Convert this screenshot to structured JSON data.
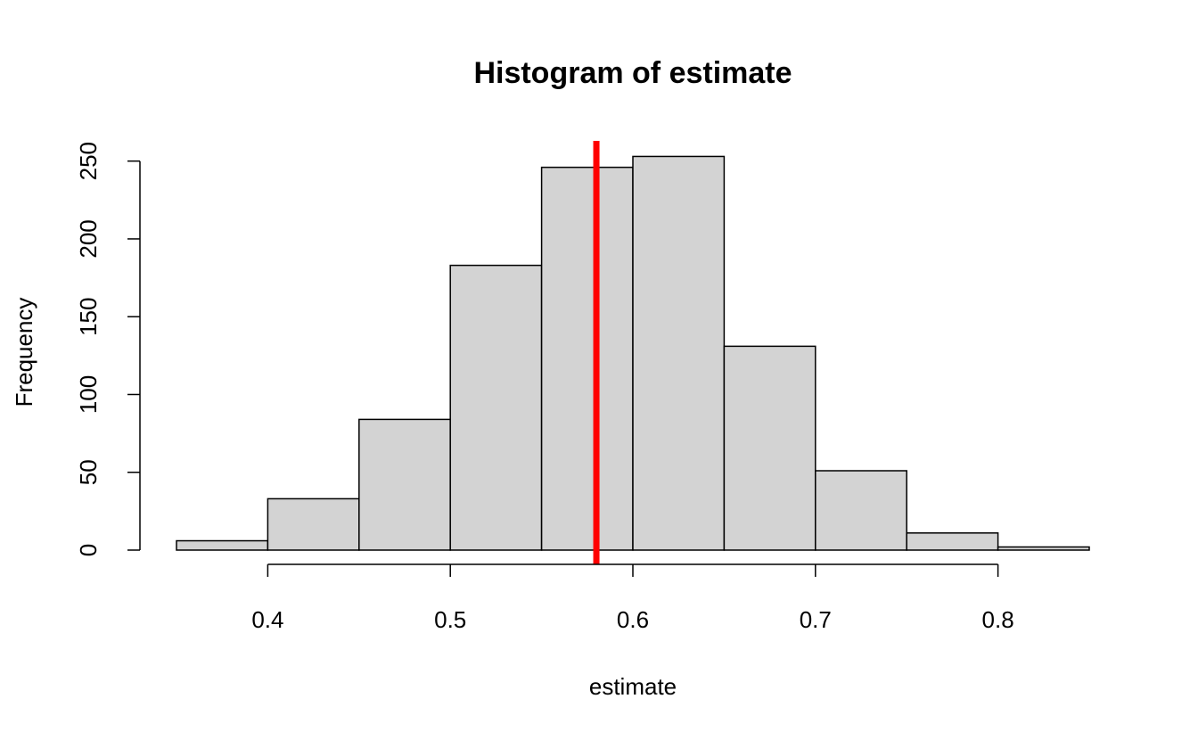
{
  "chart_data": {
    "type": "bar",
    "title": "Histogram of estimate",
    "xlabel": "estimate",
    "ylabel": "Frequency",
    "bins": [
      {
        "start": 0.35,
        "end": 0.4,
        "value": 6
      },
      {
        "start": 0.4,
        "end": 0.45,
        "value": 33
      },
      {
        "start": 0.45,
        "end": 0.5,
        "value": 84
      },
      {
        "start": 0.5,
        "end": 0.55,
        "value": 183
      },
      {
        "start": 0.55,
        "end": 0.6,
        "value": 246
      },
      {
        "start": 0.6,
        "end": 0.65,
        "value": 253
      },
      {
        "start": 0.65,
        "end": 0.7,
        "value": 131
      },
      {
        "start": 0.7,
        "end": 0.75,
        "value": 51
      },
      {
        "start": 0.75,
        "end": 0.8,
        "value": 11
      },
      {
        "start": 0.8,
        "end": 0.85,
        "value": 2
      }
    ],
    "x_ticks": [
      0.4,
      0.5,
      0.6,
      0.7,
      0.8
    ],
    "x_tick_labels": [
      "0.4",
      "0.5",
      "0.6",
      "0.7",
      "0.8"
    ],
    "y_ticks": [
      0,
      50,
      100,
      150,
      200,
      250
    ],
    "y_tick_labels": [
      "0",
      "50",
      "100",
      "150",
      "200",
      "250"
    ],
    "xlim": [
      0.35,
      0.85
    ],
    "ylim": [
      0,
      263
    ],
    "vertical_line": {
      "x": 0.58,
      "color": "#ff0000"
    },
    "bar_fill": "#d3d3d3",
    "bar_stroke": "#000000",
    "grid": false,
    "legend": "none"
  }
}
